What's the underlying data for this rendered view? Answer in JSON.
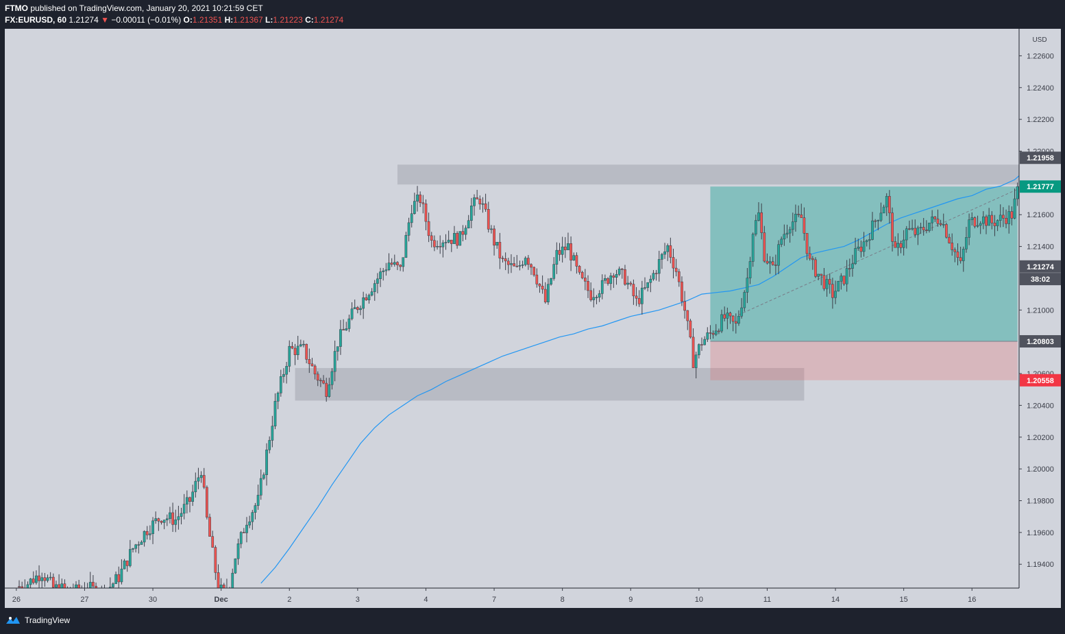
{
  "header": {
    "publisher": "FTMO",
    "published_text": "published on TradingView.com, January 20, 2021 10:21:59 CET",
    "symbol": "FX:EURUSD, 60",
    "last": "1.21274",
    "change_arrow": "▼",
    "change": "−0.00011 (−0.01%)",
    "o_label": "O:",
    "o_value": "1.21351",
    "h_label": "H:",
    "h_value": "1.21367",
    "l_label": "L:",
    "l_value": "1.21223",
    "c_label": "C:",
    "c_value": "1.21274"
  },
  "footer": {
    "brand": "TradingView",
    "logo_icon": "tradingview-logo-icon"
  },
  "colors": {
    "background": "#d1d4dc",
    "frame": "#1e222d",
    "up": "#26a69a",
    "down": "#ef5350",
    "ma": "#2196f3",
    "target_zone": "#26a69a",
    "stop_zone": "#ef5350",
    "sr_zone": "#b2b5be"
  },
  "chart_data": {
    "type": "candlestick",
    "currency": "USD",
    "ylim": [
      1.1925,
      1.2277
    ],
    "yticks": [
      "1.19400",
      "1.19600",
      "1.19800",
      "1.20000",
      "1.20200",
      "1.20400",
      "1.20600",
      "1.21000",
      "1.21400",
      "1.21600",
      "1.22000",
      "1.22200",
      "1.22400",
      "1.22600"
    ],
    "xticks": [
      {
        "label": "26",
        "bar": -1
      },
      {
        "label": "27",
        "bar": 23
      },
      {
        "label": "30",
        "bar": 47
      },
      {
        "label": "Dec",
        "bar": 71,
        "bold": true
      },
      {
        "label": "2",
        "bar": 95
      },
      {
        "label": "3",
        "bar": 119
      },
      {
        "label": "4",
        "bar": 143
      },
      {
        "label": "7",
        "bar": 167
      },
      {
        "label": "8",
        "bar": 191
      },
      {
        "label": "9",
        "bar": 215
      },
      {
        "label": "10",
        "bar": 239
      },
      {
        "label": "11",
        "bar": 263
      },
      {
        "label": "14",
        "bar": 287
      },
      {
        "label": "15",
        "bar": 311
      },
      {
        "label": "16",
        "bar": 335
      }
    ],
    "bar_count": 355,
    "anchors": [
      [
        0,
        1.1926
      ],
      [
        3,
        1.1928
      ],
      [
        8,
        1.1935
      ],
      [
        12,
        1.1925
      ],
      [
        20,
        1.1923
      ],
      [
        24,
        1.1925
      ],
      [
        30,
        1.1922
      ],
      [
        35,
        1.1932
      ],
      [
        40,
        1.195
      ],
      [
        45,
        1.1962
      ],
      [
        50,
        1.197
      ],
      [
        55,
        1.1968
      ],
      [
        60,
        1.198
      ],
      [
        64,
        1.2
      ],
      [
        66,
        1.1968
      ],
      [
        70,
        1.1925
      ],
      [
        73,
        1.192
      ],
      [
        76,
        1.1945
      ],
      [
        80,
        1.1968
      ],
      [
        84,
        1.198
      ],
      [
        86,
        1.2
      ],
      [
        90,
        1.204
      ],
      [
        95,
        1.2075
      ],
      [
        100,
        1.2075
      ],
      [
        104,
        1.206
      ],
      [
        108,
        1.205
      ],
      [
        112,
        1.208
      ],
      [
        118,
        1.21
      ],
      [
        124,
        1.2115
      ],
      [
        130,
        1.213
      ],
      [
        134,
        1.2125
      ],
      [
        138,
        1.2165
      ],
      [
        141,
        1.217
      ],
      [
        145,
        1.2143
      ],
      [
        150,
        1.2145
      ],
      [
        155,
        1.2145
      ],
      [
        159,
        1.2165
      ],
      [
        162,
        1.217
      ],
      [
        167,
        1.2143
      ],
      [
        170,
        1.213
      ],
      [
        175,
        1.2125
      ],
      [
        178,
        1.2135
      ],
      [
        181,
        1.2125
      ],
      [
        185,
        1.2105
      ],
      [
        189,
        1.2135
      ],
      [
        193,
        1.214
      ],
      [
        197,
        1.212
      ],
      [
        201,
        1.211
      ],
      [
        205,
        1.2115
      ],
      [
        209,
        1.2125
      ],
      [
        213,
        1.212
      ],
      [
        217,
        1.2105
      ],
      [
        221,
        1.2115
      ],
      [
        225,
        1.213
      ],
      [
        228,
        1.214
      ],
      [
        231,
        1.2125
      ],
      [
        234,
        1.21
      ],
      [
        237,
        1.2068
      ],
      [
        240,
        1.208
      ],
      [
        243,
        1.2085
      ],
      [
        248,
        1.2095
      ],
      [
        252,
        1.209
      ],
      [
        256,
        1.212
      ],
      [
        258,
        1.215
      ],
      [
        260,
        1.216
      ],
      [
        262,
        1.2135
      ],
      [
        265,
        1.2125
      ],
      [
        268,
        1.2145
      ],
      [
        271,
        1.2155
      ],
      [
        275,
        1.2158
      ],
      [
        278,
        1.213
      ],
      [
        282,
        1.212
      ],
      [
        286,
        1.211
      ],
      [
        290,
        1.212
      ],
      [
        294,
        1.2135
      ],
      [
        298,
        1.2145
      ],
      [
        302,
        1.216
      ],
      [
        305,
        1.217
      ],
      [
        308,
        1.2135
      ],
      [
        312,
        1.215
      ],
      [
        316,
        1.2148
      ],
      [
        320,
        1.2155
      ],
      [
        324,
        1.2158
      ],
      [
        327,
        1.2145
      ],
      [
        331,
        1.2128
      ],
      [
        334,
        1.2155
      ],
      [
        338,
        1.2158
      ],
      [
        342,
        1.2155
      ],
      [
        346,
        1.2158
      ],
      [
        349,
        1.216
      ],
      [
        351,
        1.2175
      ],
      [
        352,
        1.2205
      ],
      [
        354,
        1.2195
      ],
      [
        356,
        1.219
      ],
      [
        359,
        1.2195
      ],
      [
        360,
        1.21274
      ]
    ],
    "moving_average": {
      "name": "MA",
      "points": [
        [
          85,
          1.1928
        ],
        [
          90,
          1.1938
        ],
        [
          95,
          1.195
        ],
        [
          100,
          1.1963
        ],
        [
          105,
          1.1976
        ],
        [
          110,
          1.199
        ],
        [
          115,
          1.2003
        ],
        [
          120,
          1.2016
        ],
        [
          125,
          1.2026
        ],
        [
          130,
          1.2034
        ],
        [
          135,
          1.204
        ],
        [
          140,
          1.2046
        ],
        [
          145,
          1.205
        ],
        [
          150,
          1.2055
        ],
        [
          155,
          1.2059
        ],
        [
          160,
          1.2063
        ],
        [
          165,
          1.2067
        ],
        [
          170,
          1.2071
        ],
        [
          175,
          1.2074
        ],
        [
          180,
          1.2077
        ],
        [
          185,
          1.208
        ],
        [
          190,
          1.2083
        ],
        [
          195,
          1.2085
        ],
        [
          200,
          1.2088
        ],
        [
          205,
          1.209
        ],
        [
          210,
          1.2093
        ],
        [
          215,
          1.2096
        ],
        [
          220,
          1.2098
        ],
        [
          225,
          1.21
        ],
        [
          230,
          1.2103
        ],
        [
          235,
          1.2106
        ],
        [
          240,
          1.211
        ],
        [
          245,
          1.2111
        ],
        [
          250,
          1.2112
        ],
        [
          255,
          1.2114
        ],
        [
          260,
          1.2116
        ],
        [
          265,
          1.2121
        ],
        [
          270,
          1.2127
        ],
        [
          275,
          1.2133
        ],
        [
          280,
          1.2136
        ],
        [
          285,
          1.2138
        ],
        [
          290,
          1.214
        ],
        [
          295,
          1.2144
        ],
        [
          300,
          1.2149
        ],
        [
          305,
          1.2154
        ],
        [
          310,
          1.2158
        ],
        [
          315,
          1.2161
        ],
        [
          320,
          1.2164
        ],
        [
          325,
          1.2167
        ],
        [
          330,
          1.217
        ],
        [
          335,
          1.2172
        ],
        [
          340,
          1.2176
        ],
        [
          345,
          1.2178
        ],
        [
          350,
          1.2182
        ],
        [
          355,
          1.219
        ],
        [
          360,
          1.2198
        ]
      ]
    },
    "zones": [
      {
        "name": "resistance-zone",
        "from_bar": 133,
        "to_bar": 357,
        "top": 1.21915,
        "bottom": 1.2179
      },
      {
        "name": "support-zone",
        "from_bar": 97,
        "to_bar": 276,
        "top": 1.20635,
        "bottom": 1.2043
      }
    ],
    "position": {
      "type": "long",
      "from_bar": 243,
      "to_bar": 351,
      "target": 1.21777,
      "entry": 1.20803,
      "stop": 1.20558
    },
    "price_labels": [
      {
        "value": "1.21958",
        "price": 1.21958,
        "kind": "dark"
      },
      {
        "value": "1.21777",
        "price": 1.21777,
        "kind": "green"
      },
      {
        "value": "1.21274",
        "price": 1.21274,
        "kind": "dark"
      },
      {
        "value": "38:02",
        "price": 1.21195,
        "kind": "dark"
      },
      {
        "value": "1.20803",
        "price": 1.20803,
        "kind": "dark"
      },
      {
        "value": "1.20558",
        "price": 1.20558,
        "kind": "red"
      }
    ]
  }
}
